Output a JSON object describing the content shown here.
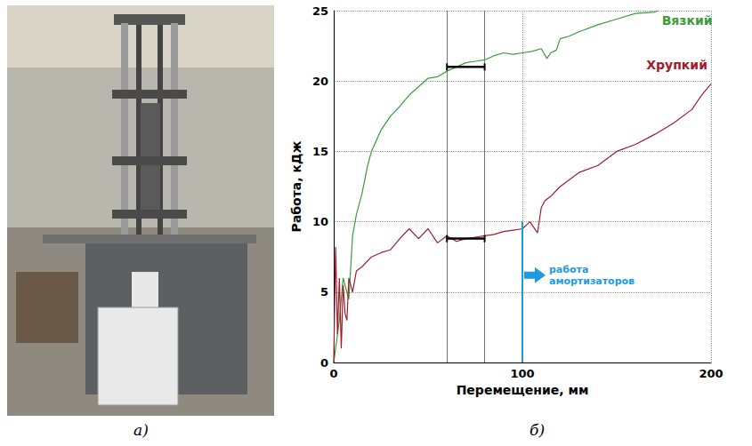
{
  "panel_labels": [
    "а)",
    "б)"
  ],
  "chart_data": {
    "type": "line",
    "xlabel": "Перемещение, мм",
    "ylabel": "Работа, кДж",
    "xlim": [
      0,
      200
    ],
    "xticks": [
      0,
      100,
      200
    ],
    "ylim": [
      0,
      25
    ],
    "yticks": [
      0,
      5,
      10,
      15,
      20,
      25
    ],
    "grid": true,
    "series": [
      {
        "name": "Вязкий",
        "color": "#3a9d3a",
        "x": [
          0,
          2,
          3,
          5,
          7,
          8,
          10,
          12,
          15,
          18,
          20,
          25,
          30,
          35,
          40,
          45,
          50,
          55,
          60,
          65,
          70,
          75,
          80,
          85,
          90,
          95,
          100,
          105,
          110,
          113,
          115,
          118,
          120,
          125,
          130,
          140,
          150,
          160,
          170,
          172
        ],
        "values": [
          0,
          2,
          3,
          6,
          5,
          4.5,
          9,
          10.5,
          12,
          14,
          15,
          16.5,
          17.5,
          18.2,
          19,
          19.6,
          20.2,
          20.3,
          20.7,
          21,
          21.3,
          21.4,
          21.5,
          21.8,
          22,
          21.9,
          22,
          22.1,
          22.3,
          21.6,
          22,
          22.2,
          23,
          23.2,
          23.5,
          24,
          24.4,
          24.8,
          24.9,
          25
        ]
      },
      {
        "name": "Хрупкий",
        "color": "#a01c2c",
        "x": [
          0,
          1,
          2,
          3,
          4,
          5,
          6,
          7,
          8,
          10,
          12,
          15,
          20,
          25,
          30,
          35,
          40,
          45,
          50,
          55,
          60,
          65,
          70,
          75,
          80,
          85,
          90,
          95,
          100,
          104,
          106,
          108,
          110,
          112,
          115,
          120,
          130,
          140,
          150,
          160,
          170,
          180,
          190,
          195,
          200
        ],
        "values": [
          0,
          8.2,
          2,
          6,
          1,
          5.5,
          3.5,
          3,
          6,
          5,
          6.5,
          6.8,
          7.5,
          7.8,
          8,
          8.8,
          9.5,
          8.8,
          9.5,
          8.5,
          9,
          8.6,
          8.8,
          8.9,
          9,
          9.1,
          9.3,
          9.4,
          9.5,
          10,
          9.6,
          9.2,
          11,
          11.5,
          11.8,
          12.5,
          13.5,
          14,
          15,
          15.5,
          16.2,
          17,
          18,
          19,
          19.8
        ]
      }
    ],
    "vertical_lines": [
      60,
      80
    ],
    "segments": [
      {
        "x": [
          60,
          80
        ],
        "y": 21
      },
      {
        "x": [
          60,
          80
        ],
        "y": 8.8
      }
    ],
    "annotation": {
      "text": "работа амортизаторов",
      "x": 100,
      "ylim": [
        0,
        10
      ],
      "color": "#1e9be0"
    }
  }
}
